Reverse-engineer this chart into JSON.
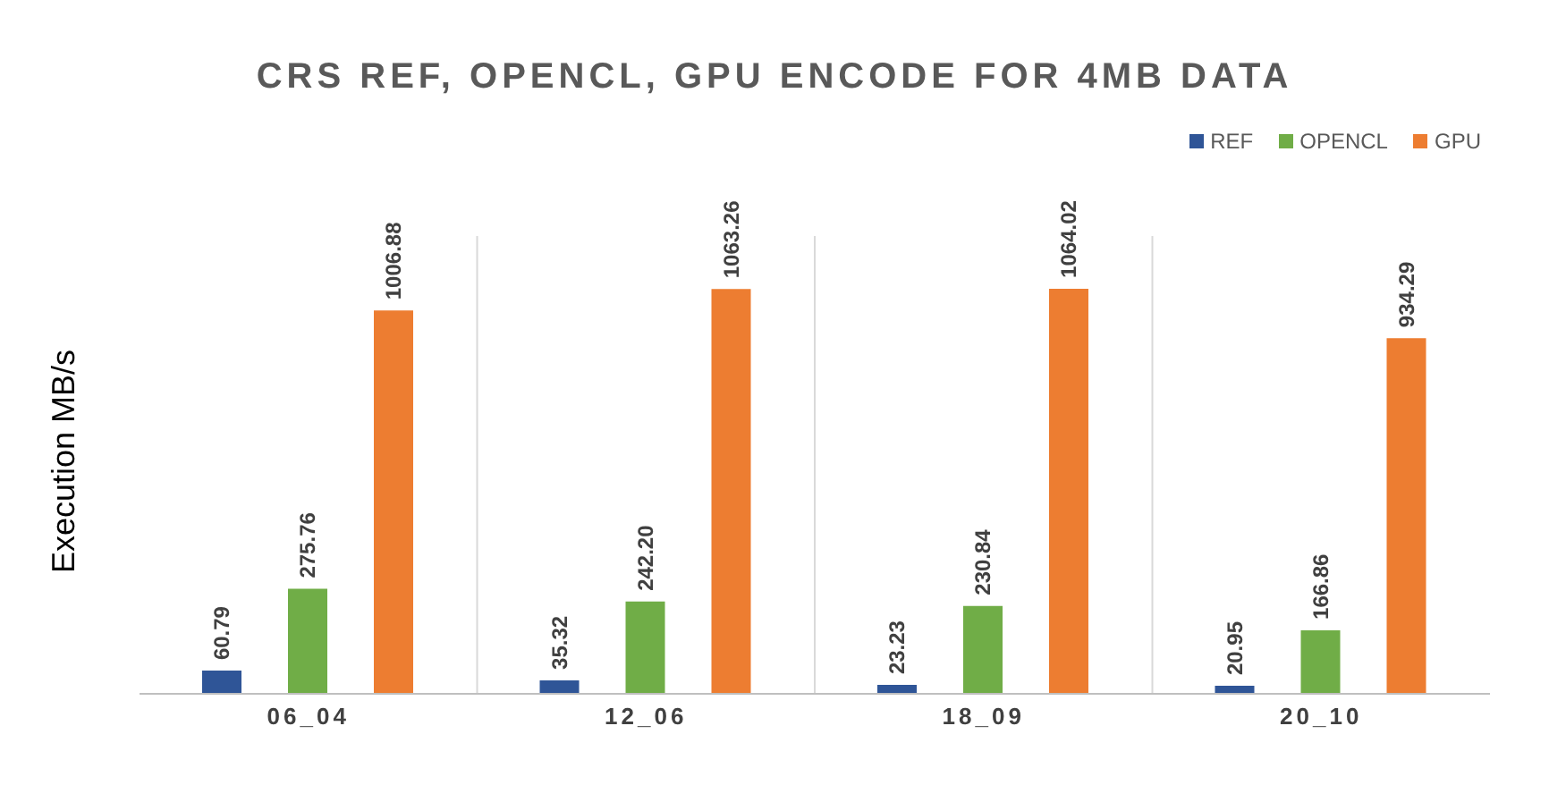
{
  "chart_data": {
    "type": "bar",
    "title": "CRS REF, OPENCL, GPU ENCODE FOR 4MB DATA",
    "ylabel": "Execution MB/s",
    "categories": [
      "06_04",
      "12_06",
      "18_09",
      "20_10"
    ],
    "series": [
      {
        "name": "REF",
        "color": "#2f5597",
        "values": [
          60.79,
          35.32,
          23.23,
          20.95
        ],
        "value_labels": [
          "60.79",
          "35.32",
          "23.23",
          "20.95"
        ]
      },
      {
        "name": "OPENCL",
        "color": "#70ad47",
        "values": [
          275.76,
          242.2,
          230.84,
          166.86
        ],
        "value_labels": [
          "275.76",
          "242.20",
          "230.84",
          "166.86"
        ]
      },
      {
        "name": "GPU",
        "color": "#ed7d31",
        "values": [
          1006.88,
          1063.26,
          1064.02,
          934.29
        ],
        "value_labels": [
          "1006.88",
          "1063.26",
          "1064.02",
          "934.29"
        ]
      }
    ],
    "legend": "top right",
    "grid": "x"
  }
}
